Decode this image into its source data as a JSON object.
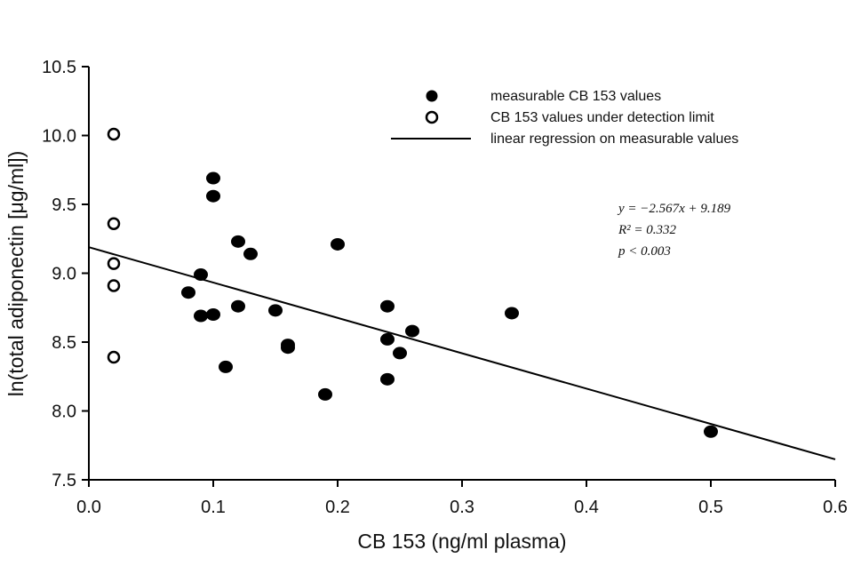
{
  "chart_data": {
    "type": "scatter",
    "xlabel": "CB 153 (ng/ml plasma)",
    "ylabel": "ln(total adiponectin [μg/ml])",
    "xlim": [
      0.0,
      0.6
    ],
    "ylim": [
      7.5,
      10.5
    ],
    "x_ticks": [
      "0.0",
      "0.1",
      "0.2",
      "0.3",
      "0.4",
      "0.5",
      "0.6"
    ],
    "y_ticks": [
      "7.5",
      "8.0",
      "8.5",
      "9.0",
      "9.5",
      "10.0",
      "10.5"
    ],
    "series": [
      {
        "name": "measurable CB 153 values",
        "marker": "filled-circle",
        "points": [
          {
            "x": 0.08,
            "y": 8.86
          },
          {
            "x": 0.09,
            "y": 8.99
          },
          {
            "x": 0.09,
            "y": 8.69
          },
          {
            "x": 0.1,
            "y": 9.69
          },
          {
            "x": 0.1,
            "y": 9.56
          },
          {
            "x": 0.1,
            "y": 8.7
          },
          {
            "x": 0.11,
            "y": 8.32
          },
          {
            "x": 0.12,
            "y": 9.23
          },
          {
            "x": 0.12,
            "y": 8.76
          },
          {
            "x": 0.13,
            "y": 9.14
          },
          {
            "x": 0.15,
            "y": 8.73
          },
          {
            "x": 0.16,
            "y": 8.48
          },
          {
            "x": 0.16,
            "y": 8.46
          },
          {
            "x": 0.19,
            "y": 8.12
          },
          {
            "x": 0.2,
            "y": 9.21
          },
          {
            "x": 0.24,
            "y": 8.76
          },
          {
            "x": 0.24,
            "y": 8.52
          },
          {
            "x": 0.24,
            "y": 8.23
          },
          {
            "x": 0.25,
            "y": 8.42
          },
          {
            "x": 0.26,
            "y": 8.58
          },
          {
            "x": 0.34,
            "y": 8.71
          },
          {
            "x": 0.5,
            "y": 7.85
          }
        ]
      },
      {
        "name": "CB 153 values under detection limit",
        "marker": "open-circle",
        "points": [
          {
            "x": 0.02,
            "y": 10.01
          },
          {
            "x": 0.02,
            "y": 9.36
          },
          {
            "x": 0.02,
            "y": 9.07
          },
          {
            "x": 0.02,
            "y": 8.91
          },
          {
            "x": 0.02,
            "y": 8.39
          }
        ]
      }
    ],
    "regression": {
      "name": "linear regression on measurable values",
      "slope": -2.567,
      "intercept": 9.189,
      "x_range": [
        0.0,
        0.6
      ]
    },
    "annotations": {
      "equation": "y = −2.567x + 9.189",
      "r_squared": "R² = 0.332",
      "p_value": "p < 0.003"
    },
    "legend": {
      "placement": "top-right",
      "entries": [
        "measurable CB 153 values",
        "CB 153 values under detection limit",
        "linear regression on measurable values"
      ]
    },
    "grid": false
  }
}
